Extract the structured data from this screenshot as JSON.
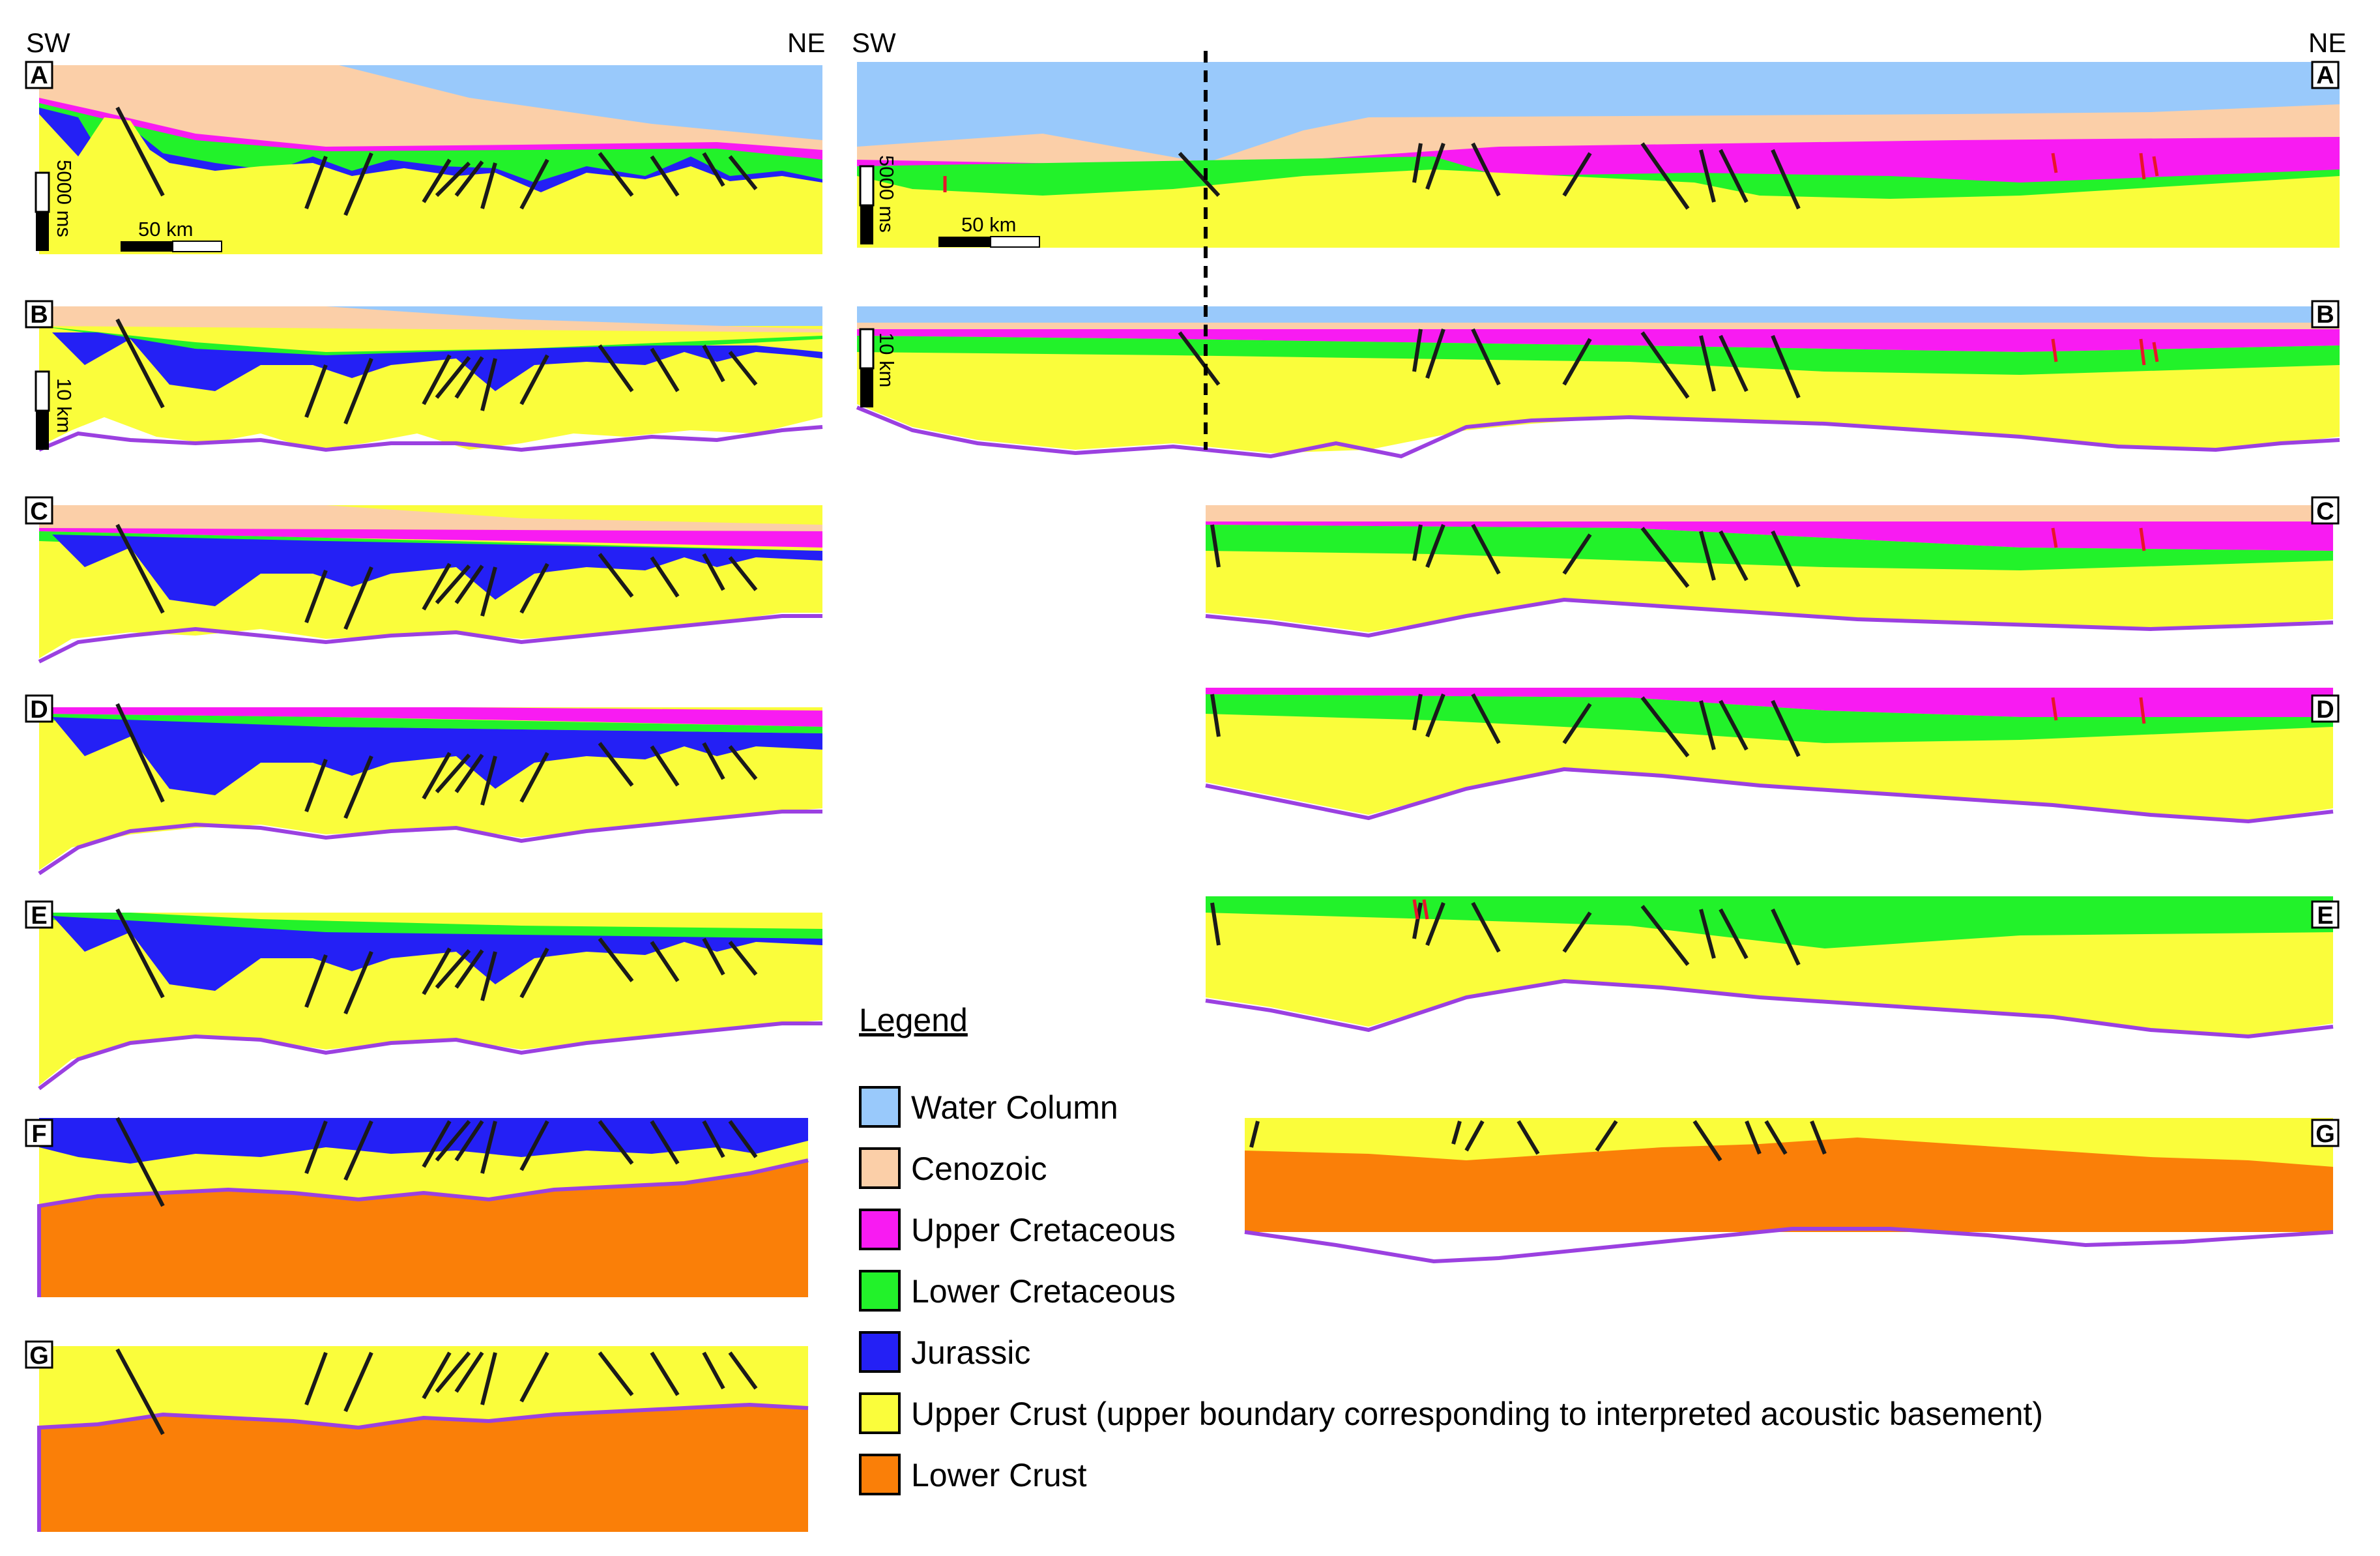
{
  "directions": {
    "sw": "SW",
    "ne": "NE"
  },
  "panels": {
    "a": "A",
    "b": "B",
    "c": "C",
    "d": "D",
    "e": "E",
    "f": "F",
    "g": "G"
  },
  "scales": {
    "vertical_time": "5000 ms",
    "vertical_depth": "10 km",
    "horizontal": "50 km"
  },
  "legend": {
    "title": "Legend",
    "items": [
      {
        "label": "Water Column",
        "color": "#99c9fb"
      },
      {
        "label": "Cenozoic",
        "color": "#fbcfa8"
      },
      {
        "label": "Upper Cretaceous",
        "color": "#f81bf2"
      },
      {
        "label": "Lower Cretaceous",
        "color": "#22f22a"
      },
      {
        "label": "Jurassic",
        "color": "#2420f5"
      },
      {
        "label": "Upper Crust (upper boundary corresponding to interpreted acoustic basement)",
        "color": "#fafd3b"
      },
      {
        "label": "Lower Crust",
        "color": "#fa7f08"
      }
    ]
  },
  "colors": {
    "water": "#99c9fb",
    "cenozoic": "#fbcfa8",
    "upper_cretaceous": "#f81bf2",
    "lower_cretaceous": "#22f22a",
    "jurassic": "#2420f5",
    "upper_crust": "#fafd3b",
    "lower_crust": "#fa7f08",
    "moho": "#9b40e0",
    "fault": "#1a1a1a",
    "small_fault": "#e8142a"
  }
}
